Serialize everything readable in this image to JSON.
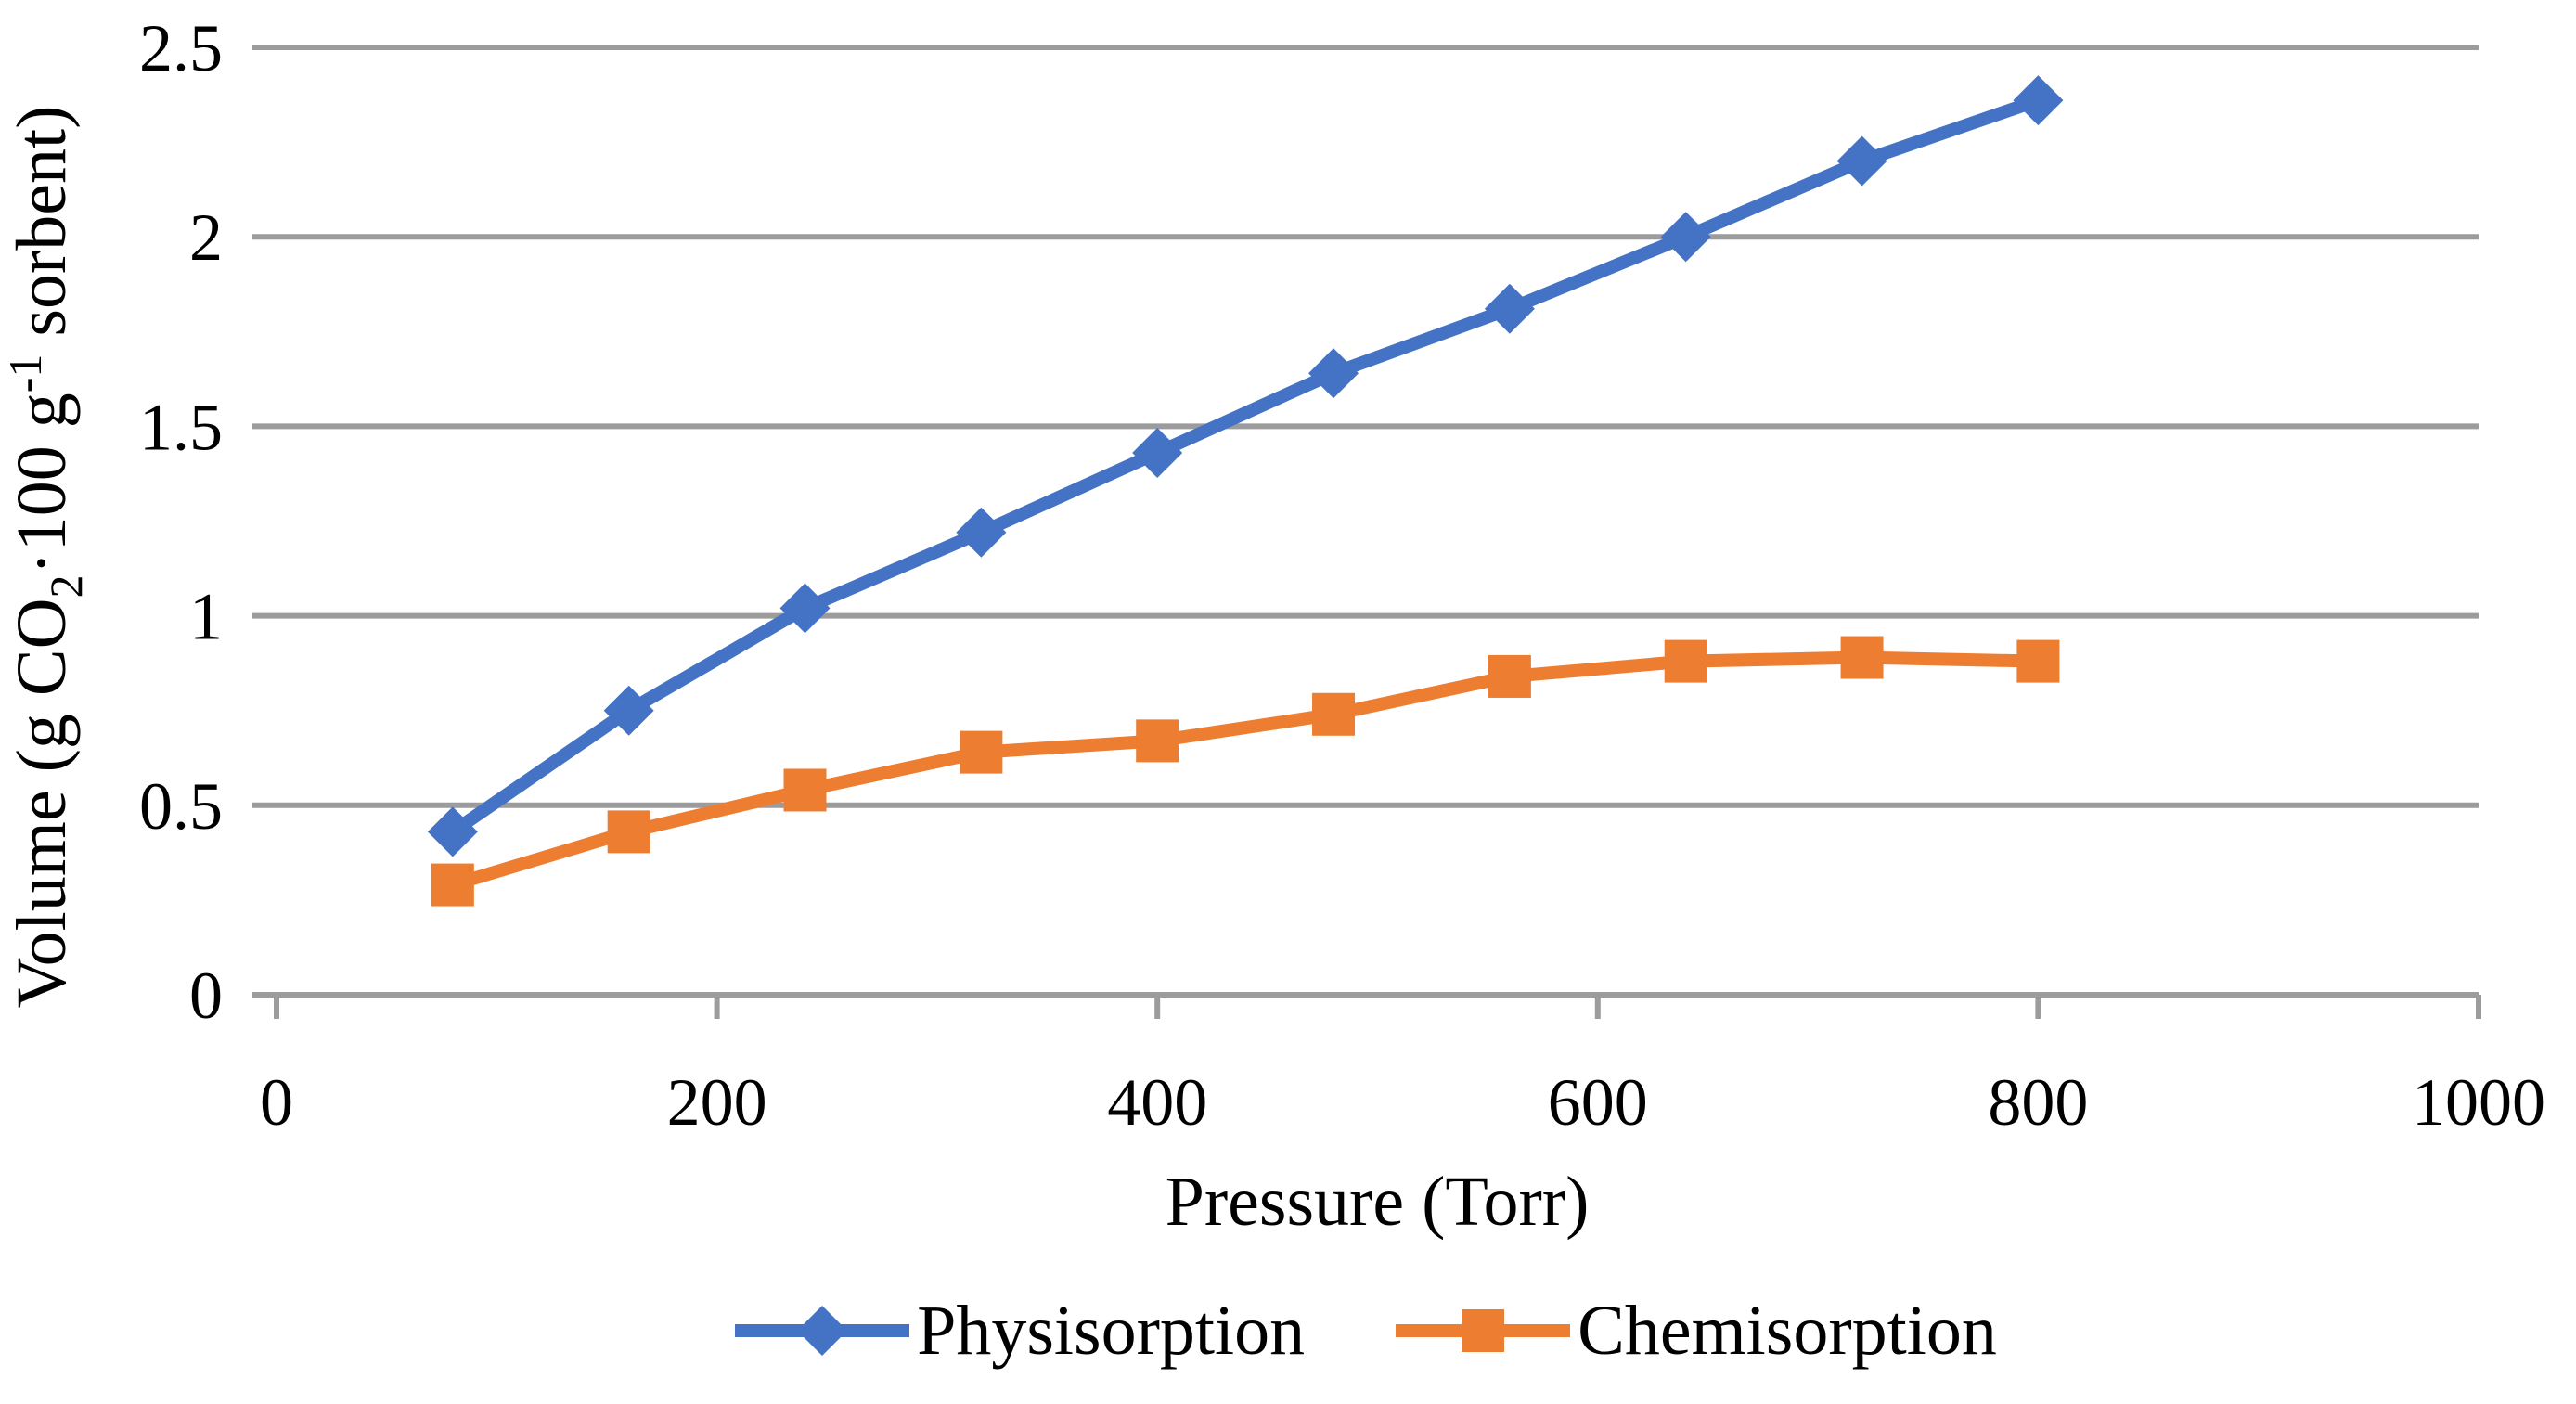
{
  "chart_data": {
    "type": "line",
    "title": "",
    "xlabel": "Pressure (Torr)",
    "ylabel": "Volume (g CO2·100 g-1 sorbent)",
    "ylabel_parts": [
      {
        "t": "Volume (g CO",
        "s": "n"
      },
      {
        "t": "2",
        "s": "sub"
      },
      {
        "t": "·100 g",
        "s": "n"
      },
      {
        "t": "-1",
        "s": "sup"
      },
      {
        "t": " sorbent)",
        "s": "n"
      }
    ],
    "x": [
      80,
      160,
      240,
      320,
      400,
      480,
      560,
      640,
      720,
      800
    ],
    "series": [
      {
        "name": "Physisorption",
        "color": "#4472C4",
        "marker": "diamond",
        "values": [
          0.43,
          0.75,
          1.02,
          1.22,
          1.43,
          1.64,
          1.81,
          2.0,
          2.2,
          2.36
        ]
      },
      {
        "name": "Chemisorption",
        "color": "#ED7D31",
        "marker": "square",
        "values": [
          0.29,
          0.43,
          0.54,
          0.64,
          0.67,
          0.74,
          0.84,
          0.88,
          0.89,
          0.88
        ]
      }
    ],
    "x_ticks": [
      0,
      200,
      400,
      600,
      800,
      1000
    ],
    "y_ticks": [
      0,
      0.5,
      1,
      1.5,
      2,
      2.5
    ],
    "xlim": [
      0,
      1000
    ],
    "ylim": [
      0,
      2.5
    ],
    "grid": "horizontal",
    "legend_position": "bottom",
    "gridline_color": "#9C9C9C",
    "axis_color": "#9C9C9C",
    "text_color": "#000000"
  }
}
